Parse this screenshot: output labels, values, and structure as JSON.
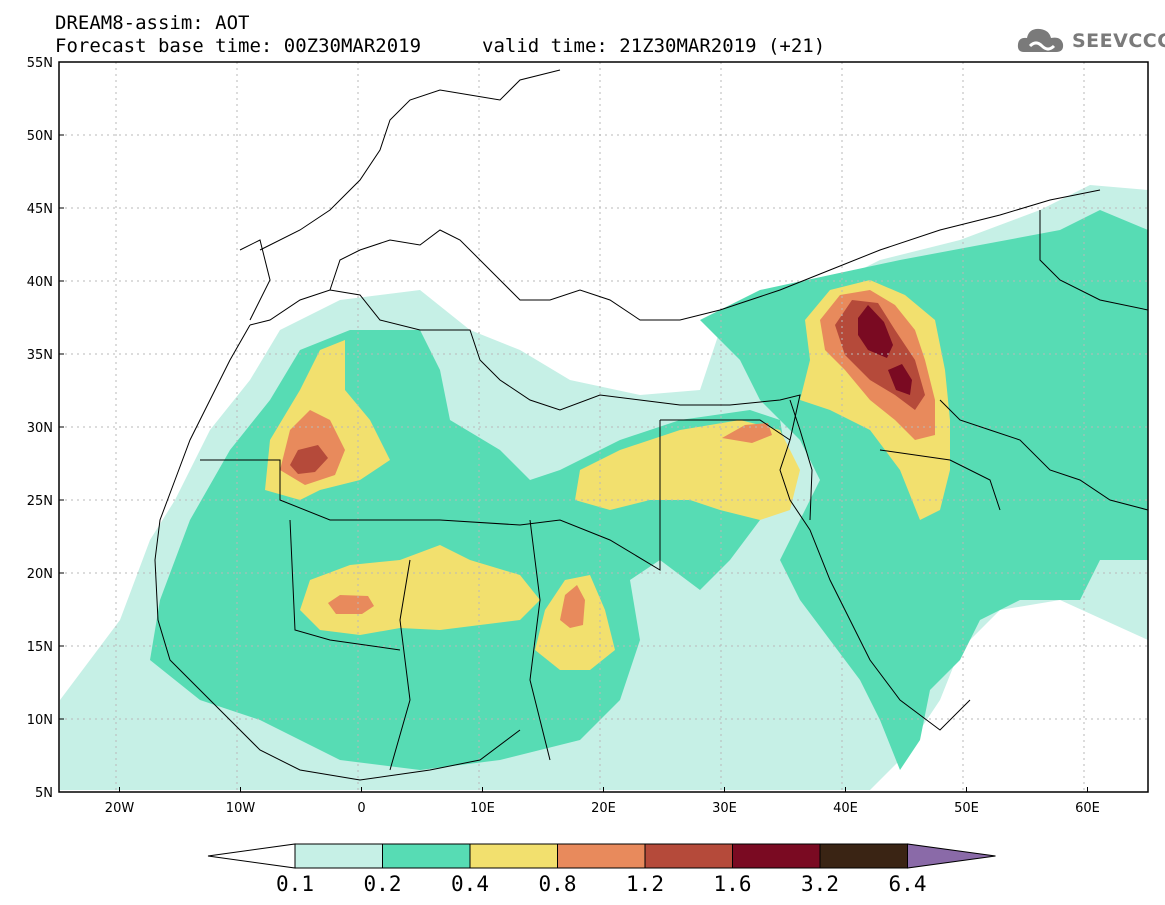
{
  "header": {
    "line1": "DREAM8-assim: AOT",
    "line2": "Forecast base time: 00Z30MAR2019",
    "valid": "valid time: 21Z30MAR2019 (+21)"
  },
  "logo": {
    "text": "SEEVCCC",
    "icon": "cloud-icon"
  },
  "map": {
    "lat_labels": [
      "55N",
      "50N",
      "45N",
      "40N",
      "35N",
      "30N",
      "25N",
      "20N",
      "15N",
      "10N",
      "5N"
    ],
    "lon_labels": [
      "20W",
      "10W",
      "0",
      "10E",
      "20E",
      "30E",
      "40E",
      "50E",
      "60E"
    ],
    "lat_range": [
      5,
      55
    ],
    "lon_range": [
      -25,
      65
    ],
    "grid": "dotted"
  },
  "colorbar": {
    "labels": [
      "0.1",
      "0.2",
      "0.4",
      "0.8",
      "1.2",
      "1.6",
      "3.2",
      "6.4"
    ],
    "colors": [
      "#ffffff",
      "#c6f0e6",
      "#57dcb4",
      "#f2e06e",
      "#e88a5c",
      "#b54a3a",
      "#7a0a22",
      "#3a2414",
      "#8a6aa8"
    ]
  }
}
